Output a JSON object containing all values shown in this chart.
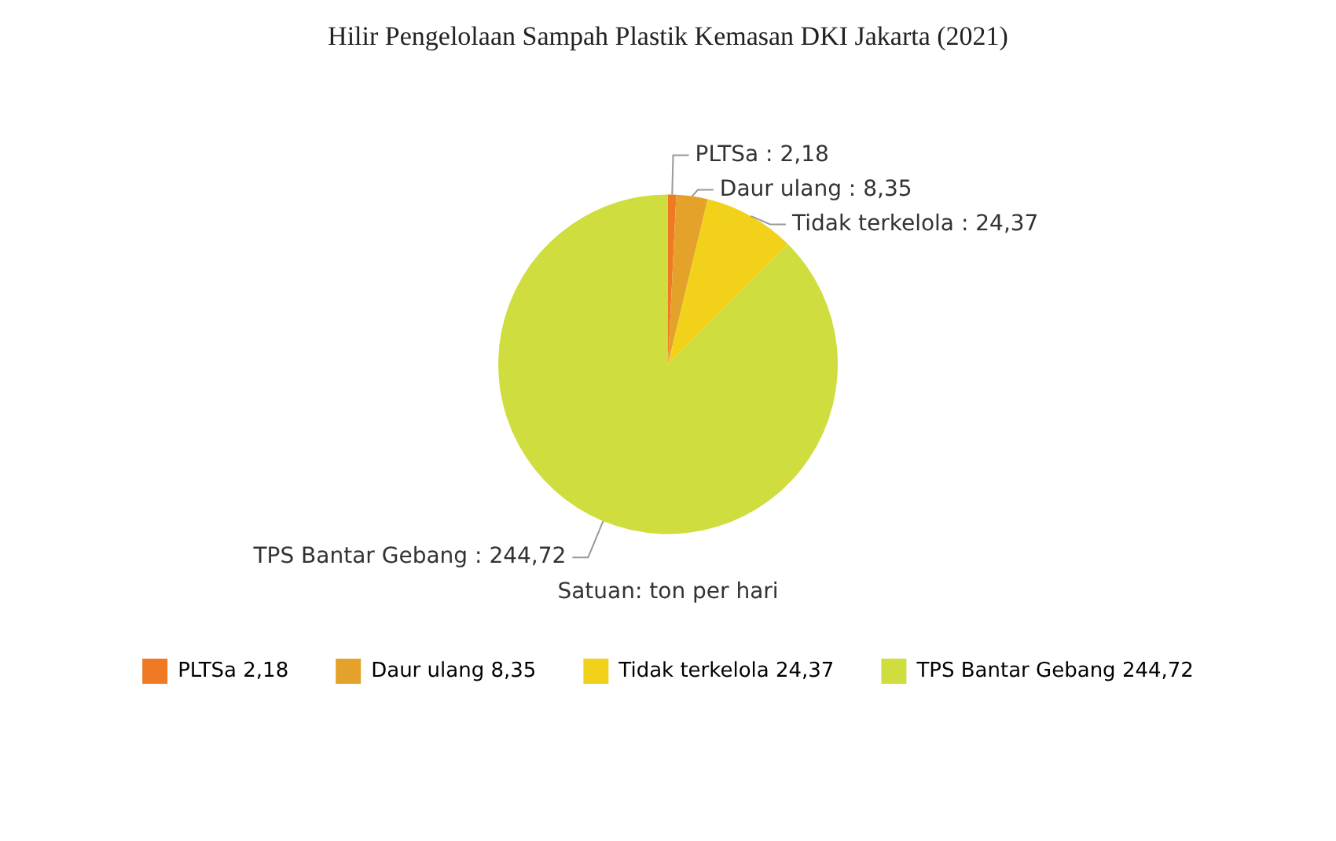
{
  "chart_data": {
    "type": "pie",
    "title": "Hilir Pengelolaan Sampah Plastik Kemasan DKI Jakarta (2021)",
    "categories": [
      "PLTSa",
      "Daur ulang",
      "Tidak terkelola",
      "TPS Bantar Gebang"
    ],
    "values": [
      2.18,
      8.35,
      24.37,
      244.72
    ],
    "value_labels": [
      "2,18",
      "8,35",
      "24,37",
      "244,72"
    ],
    "colors": [
      "#f07a23",
      "#e5a22a",
      "#f2d11a",
      "#d0dd3f"
    ],
    "annotations": [
      "Satuan: ton per hari"
    ],
    "legend": "bottom"
  }
}
